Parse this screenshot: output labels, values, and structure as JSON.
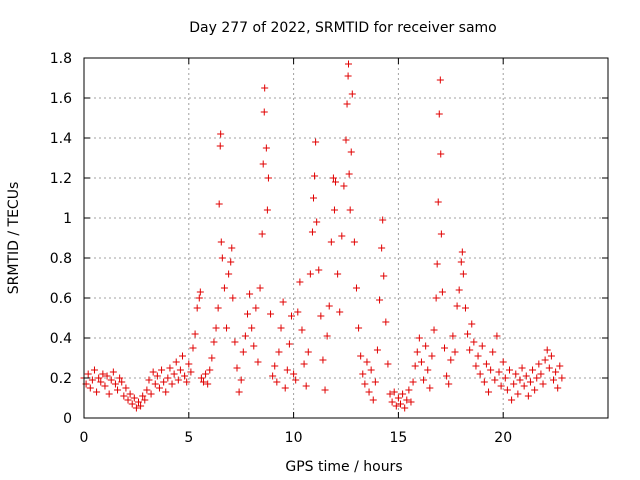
{
  "chart_data": {
    "type": "scatter",
    "title": "Day 277 of 2022, SRMTID for receiver samo",
    "xlabel": "GPS time / hours",
    "ylabel": "SRMTID / TECUs",
    "xlim": [
      0,
      25
    ],
    "ylim": [
      0,
      1.8
    ],
    "xticks": [
      0,
      5,
      10,
      15,
      20
    ],
    "yticks": [
      0,
      0.2,
      0.4,
      0.6,
      0.8,
      1,
      1.2,
      1.4,
      1.6,
      1.8
    ],
    "xtick_labels": [
      "0",
      "5",
      "10",
      "15",
      "20"
    ],
    "ytick_labels": [
      "0",
      "0.2",
      "0.4",
      "0.6",
      "0.8",
      "1",
      "1.2",
      "1.4",
      "1.6",
      "1.8"
    ],
    "marker": "+",
    "color": "#e00000",
    "grid": true,
    "series": [
      {
        "name": "SRMTID",
        "points": [
          [
            0.0,
            0.2
          ],
          [
            0.1,
            0.17
          ],
          [
            0.2,
            0.22
          ],
          [
            0.3,
            0.15
          ],
          [
            0.4,
            0.19
          ],
          [
            0.5,
            0.24
          ],
          [
            0.6,
            0.13
          ],
          [
            0.7,
            0.2
          ],
          [
            0.8,
            0.18
          ],
          [
            0.9,
            0.22
          ],
          [
            1.0,
            0.16
          ],
          [
            1.1,
            0.21
          ],
          [
            1.2,
            0.12
          ],
          [
            1.3,
            0.19
          ],
          [
            1.4,
            0.23
          ],
          [
            1.5,
            0.17
          ],
          [
            1.6,
            0.14
          ],
          [
            1.7,
            0.2
          ],
          [
            1.8,
            0.18
          ],
          [
            1.9,
            0.11
          ],
          [
            2.0,
            0.15
          ],
          [
            2.1,
            0.09
          ],
          [
            2.2,
            0.12
          ],
          [
            2.3,
            0.07
          ],
          [
            2.4,
            0.1
          ],
          [
            2.5,
            0.05
          ],
          [
            2.6,
            0.08
          ],
          [
            2.7,
            0.06
          ],
          [
            2.8,
            0.11
          ],
          [
            2.9,
            0.09
          ],
          [
            3.0,
            0.14
          ],
          [
            3.1,
            0.19
          ],
          [
            3.2,
            0.12
          ],
          [
            3.3,
            0.23
          ],
          [
            3.4,
            0.17
          ],
          [
            3.5,
            0.21
          ],
          [
            3.6,
            0.15
          ],
          [
            3.7,
            0.24
          ],
          [
            3.8,
            0.18
          ],
          [
            3.9,
            0.13
          ],
          [
            4.0,
            0.2
          ],
          [
            4.1,
            0.25
          ],
          [
            4.2,
            0.17
          ],
          [
            4.3,
            0.22
          ],
          [
            4.4,
            0.28
          ],
          [
            4.5,
            0.19
          ],
          [
            4.6,
            0.24
          ],
          [
            4.7,
            0.31
          ],
          [
            4.8,
            0.21
          ],
          [
            4.9,
            0.18
          ],
          [
            5.0,
            0.27
          ],
          [
            5.1,
            0.23
          ],
          [
            5.2,
            0.35
          ],
          [
            5.3,
            0.42
          ],
          [
            5.4,
            0.55
          ],
          [
            5.5,
            0.6
          ],
          [
            5.55,
            0.63
          ],
          [
            5.6,
            0.2
          ],
          [
            5.7,
            0.18
          ],
          [
            5.8,
            0.22
          ],
          [
            5.9,
            0.17
          ],
          [
            6.0,
            0.24
          ],
          [
            6.1,
            0.3
          ],
          [
            6.2,
            0.38
          ],
          [
            6.3,
            0.45
          ],
          [
            6.4,
            0.55
          ],
          [
            6.45,
            1.07
          ],
          [
            6.5,
            1.36
          ],
          [
            6.52,
            1.42
          ],
          [
            6.55,
            0.88
          ],
          [
            6.6,
            0.8
          ],
          [
            6.7,
            0.65
          ],
          [
            6.8,
            0.45
          ],
          [
            6.9,
            0.72
          ],
          [
            7.0,
            0.78
          ],
          [
            7.05,
            0.85
          ],
          [
            7.1,
            0.6
          ],
          [
            7.2,
            0.38
          ],
          [
            7.3,
            0.25
          ],
          [
            7.4,
            0.13
          ],
          [
            7.5,
            0.19
          ],
          [
            7.6,
            0.33
          ],
          [
            7.7,
            0.41
          ],
          [
            7.8,
            0.52
          ],
          [
            7.9,
            0.62
          ],
          [
            8.0,
            0.45
          ],
          [
            8.1,
            0.36
          ],
          [
            8.2,
            0.55
          ],
          [
            8.3,
            0.28
          ],
          [
            8.4,
            0.65
          ],
          [
            8.5,
            0.92
          ],
          [
            8.55,
            1.27
          ],
          [
            8.6,
            1.53
          ],
          [
            8.62,
            1.65
          ],
          [
            8.7,
            1.35
          ],
          [
            8.75,
            1.04
          ],
          [
            8.8,
            1.2
          ],
          [
            8.9,
            0.52
          ],
          [
            9.0,
            0.21
          ],
          [
            9.1,
            0.26
          ],
          [
            9.2,
            0.18
          ],
          [
            9.3,
            0.33
          ],
          [
            9.4,
            0.45
          ],
          [
            9.5,
            0.58
          ],
          [
            9.6,
            0.15
          ],
          [
            9.7,
            0.24
          ],
          [
            9.8,
            0.37
          ],
          [
            9.9,
            0.51
          ],
          [
            10.0,
            0.22
          ],
          [
            10.1,
            0.19
          ],
          [
            10.2,
            0.53
          ],
          [
            10.3,
            0.68
          ],
          [
            10.4,
            0.44
          ],
          [
            10.5,
            0.27
          ],
          [
            10.6,
            0.16
          ],
          [
            10.7,
            0.33
          ],
          [
            10.8,
            0.72
          ],
          [
            10.9,
            0.93
          ],
          [
            10.95,
            1.1
          ],
          [
            11.0,
            1.21
          ],
          [
            11.05,
            1.38
          ],
          [
            11.1,
            0.98
          ],
          [
            11.2,
            0.74
          ],
          [
            11.3,
            0.51
          ],
          [
            11.4,
            0.29
          ],
          [
            11.5,
            0.14
          ],
          [
            11.6,
            0.41
          ],
          [
            11.7,
            0.56
          ],
          [
            11.8,
            0.88
          ],
          [
            11.9,
            1.2
          ],
          [
            11.95,
            1.04
          ],
          [
            12.0,
            1.18
          ],
          [
            12.1,
            0.72
          ],
          [
            12.2,
            0.53
          ],
          [
            12.3,
            0.91
          ],
          [
            12.4,
            1.16
          ],
          [
            12.5,
            1.39
          ],
          [
            12.55,
            1.57
          ],
          [
            12.6,
            1.71
          ],
          [
            12.62,
            1.77
          ],
          [
            12.65,
            1.22
          ],
          [
            12.7,
            1.04
          ],
          [
            12.75,
            1.33
          ],
          [
            12.8,
            1.62
          ],
          [
            12.9,
            0.88
          ],
          [
            13.0,
            0.65
          ],
          [
            13.1,
            0.45
          ],
          [
            13.2,
            0.31
          ],
          [
            13.3,
            0.22
          ],
          [
            13.4,
            0.17
          ],
          [
            13.5,
            0.28
          ],
          [
            13.6,
            0.13
          ],
          [
            13.7,
            0.24
          ],
          [
            13.8,
            0.09
          ],
          [
            13.9,
            0.18
          ],
          [
            14.0,
            0.34
          ],
          [
            14.1,
            0.59
          ],
          [
            14.2,
            0.85
          ],
          [
            14.25,
            0.99
          ],
          [
            14.3,
            0.71
          ],
          [
            14.4,
            0.48
          ],
          [
            14.5,
            0.27
          ],
          [
            14.6,
            0.12
          ],
          [
            14.7,
            0.08
          ],
          [
            14.8,
            0.13
          ],
          [
            14.9,
            0.06
          ],
          [
            15.0,
            0.1
          ],
          [
            15.1,
            0.07
          ],
          [
            15.2,
            0.12
          ],
          [
            15.3,
            0.05
          ],
          [
            15.4,
            0.09
          ],
          [
            15.5,
            0.14
          ],
          [
            15.6,
            0.08
          ],
          [
            15.7,
            0.18
          ],
          [
            15.8,
            0.26
          ],
          [
            15.9,
            0.33
          ],
          [
            16.0,
            0.4
          ],
          [
            16.1,
            0.28
          ],
          [
            16.2,
            0.19
          ],
          [
            16.3,
            0.36
          ],
          [
            16.4,
            0.24
          ],
          [
            16.5,
            0.15
          ],
          [
            16.6,
            0.31
          ],
          [
            16.7,
            0.44
          ],
          [
            16.8,
            0.6
          ],
          [
            16.85,
            0.77
          ],
          [
            16.9,
            1.08
          ],
          [
            16.95,
            1.52
          ],
          [
            17.0,
            1.69
          ],
          [
            17.02,
            1.32
          ],
          [
            17.05,
            0.92
          ],
          [
            17.1,
            0.63
          ],
          [
            17.2,
            0.35
          ],
          [
            17.3,
            0.21
          ],
          [
            17.4,
            0.17
          ],
          [
            17.5,
            0.29
          ],
          [
            17.6,
            0.41
          ],
          [
            17.7,
            0.33
          ],
          [
            17.8,
            0.56
          ],
          [
            17.9,
            0.64
          ],
          [
            18.0,
            0.78
          ],
          [
            18.05,
            0.83
          ],
          [
            18.1,
            0.72
          ],
          [
            18.2,
            0.55
          ],
          [
            18.3,
            0.42
          ],
          [
            18.4,
            0.34
          ],
          [
            18.5,
            0.47
          ],
          [
            18.6,
            0.38
          ],
          [
            18.7,
            0.26
          ],
          [
            18.8,
            0.31
          ],
          [
            18.9,
            0.22
          ],
          [
            19.0,
            0.36
          ],
          [
            19.1,
            0.18
          ],
          [
            19.2,
            0.27
          ],
          [
            19.3,
            0.13
          ],
          [
            19.4,
            0.24
          ],
          [
            19.5,
            0.33
          ],
          [
            19.6,
            0.19
          ],
          [
            19.7,
            0.41
          ],
          [
            19.8,
            0.23
          ],
          [
            19.9,
            0.16
          ],
          [
            20.0,
            0.28
          ],
          [
            20.1,
            0.2
          ],
          [
            20.2,
            0.14
          ],
          [
            20.3,
            0.24
          ],
          [
            20.4,
            0.09
          ],
          [
            20.5,
            0.17
          ],
          [
            20.6,
            0.22
          ],
          [
            20.7,
            0.12
          ],
          [
            20.8,
            0.19
          ],
          [
            20.9,
            0.25
          ],
          [
            21.0,
            0.16
          ],
          [
            21.1,
            0.21
          ],
          [
            21.2,
            0.11
          ],
          [
            21.3,
            0.18
          ],
          [
            21.4,
            0.24
          ],
          [
            21.5,
            0.14
          ],
          [
            21.6,
            0.2
          ],
          [
            21.7,
            0.27
          ],
          [
            21.8,
            0.22
          ],
          [
            21.9,
            0.17
          ],
          [
            22.0,
            0.29
          ],
          [
            22.1,
            0.34
          ],
          [
            22.2,
            0.25
          ],
          [
            22.3,
            0.31
          ],
          [
            22.4,
            0.19
          ],
          [
            22.5,
            0.23
          ],
          [
            22.6,
            0.15
          ],
          [
            22.7,
            0.26
          ],
          [
            22.8,
            0.2
          ]
        ]
      }
    ]
  }
}
